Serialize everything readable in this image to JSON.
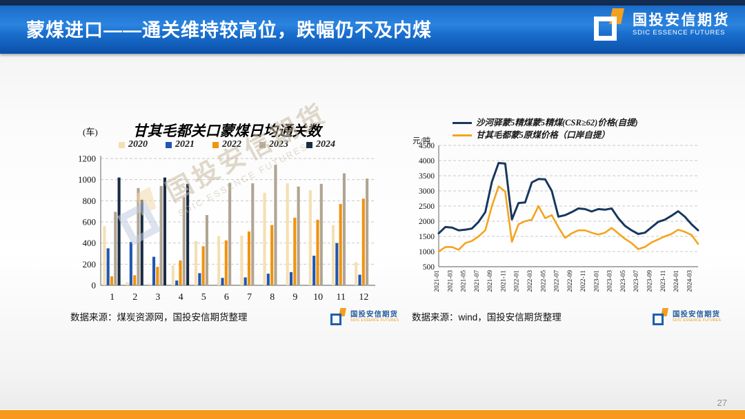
{
  "brand": {
    "cn": "国投安信期货",
    "en": "SDIC ESSENCE FUTURES"
  },
  "header": {
    "title": "蒙煤进口——通关维持较高位，跌幅仍不及内煤"
  },
  "footer": {
    "page_number": "27"
  },
  "left_chart": {
    "unit": "(车)",
    "title": "甘其毛都关口蒙煤日均通关数",
    "source": "数据来源：煤炭资源网，国投安信期货整理"
  },
  "right_chart": {
    "unit": "元/吨",
    "source": "数据来源：wind，国投安信期货整理"
  },
  "chart_data": [
    {
      "type": "bar",
      "title": "甘其毛都关口蒙煤日均通关数",
      "ylabel": "车",
      "categories": [
        "1",
        "2",
        "3",
        "4",
        "5",
        "6",
        "7",
        "8",
        "9",
        "10",
        "11",
        "12"
      ],
      "ylim": [
        0,
        1200
      ],
      "ytick_step": 200,
      "grid": true,
      "legend_position": "top",
      "series": [
        {
          "name": "2020",
          "color": "#F5DFB2",
          "values": [
            560,
            30,
            15,
            190,
            420,
            465,
            470,
            875,
            965,
            900,
            570,
            220
          ]
        },
        {
          "name": "2021",
          "color": "#2057B0",
          "values": [
            350,
            410,
            270,
            45,
            115,
            70,
            75,
            110,
            125,
            280,
            400,
            100
          ]
        },
        {
          "name": "2022",
          "color": "#F0930F",
          "values": [
            85,
            95,
            175,
            235,
            370,
            425,
            510,
            570,
            640,
            620,
            770,
            820
          ]
        },
        {
          "name": "2023",
          "color": "#B0A493",
          "values": [
            695,
            920,
            940,
            835,
            665,
            970,
            965,
            1140,
            935,
            960,
            1060,
            1010
          ]
        },
        {
          "name": "2024",
          "color": "#1A2C42",
          "values": [
            1020,
            810,
            1020,
            960,
            null,
            null,
            null,
            null,
            null,
            null,
            null,
            null
          ]
        }
      ]
    },
    {
      "type": "line",
      "ylabel": "元/吨",
      "ylim": [
        500,
        4500
      ],
      "ytick_step": 500,
      "grid": true,
      "legend_position": "top",
      "xtick_every": 2,
      "x": [
        "2021-01",
        "2021-02",
        "2021-03",
        "2021-04",
        "2021-05",
        "2021-06",
        "2021-07",
        "2021-08",
        "2021-09",
        "2021-10",
        "2021-11",
        "2021-12",
        "2022-01",
        "2022-02",
        "2022-03",
        "2022-04",
        "2022-05",
        "2022-06",
        "2022-07",
        "2022-08",
        "2022-09",
        "2022-10",
        "2022-11",
        "2022-12",
        "2023-01",
        "2023-02",
        "2023-03",
        "2023-04",
        "2023-05",
        "2023-06",
        "2023-07",
        "2023-08",
        "2023-09",
        "2023-10",
        "2023-11",
        "2023-12",
        "2024-01",
        "2024-02",
        "2024-03",
        "2024-04"
      ],
      "series": [
        {
          "name": "沙河驿蒙5精煤蒙5精煤(CSR≥62)价格(自提)",
          "color": "#17375E",
          "values": [
            1600,
            1810,
            1790,
            1700,
            1720,
            1760,
            1980,
            2300,
            3300,
            3920,
            3900,
            2060,
            2600,
            2620,
            3280,
            3390,
            3380,
            3000,
            2150,
            2200,
            2300,
            2420,
            2400,
            2320,
            2400,
            2380,
            2420,
            2100,
            1850,
            1700,
            1580,
            1620,
            1800,
            1980,
            2050,
            2180,
            2330,
            2150,
            1900,
            1700
          ]
        },
        {
          "name": "甘其毛都蒙5原煤价格（口岸自提）",
          "color": "#F5A31D",
          "values": [
            1000,
            1150,
            1150,
            1060,
            1280,
            1350,
            1500,
            1700,
            2500,
            3150,
            2980,
            1320,
            1900,
            2000,
            2050,
            2500,
            2100,
            2200,
            1800,
            1450,
            1600,
            1700,
            1700,
            1620,
            1560,
            1620,
            1780,
            1600,
            1420,
            1280,
            1080,
            1150,
            1300,
            1400,
            1500,
            1580,
            1720,
            1650,
            1550,
            1250
          ]
        }
      ]
    }
  ]
}
